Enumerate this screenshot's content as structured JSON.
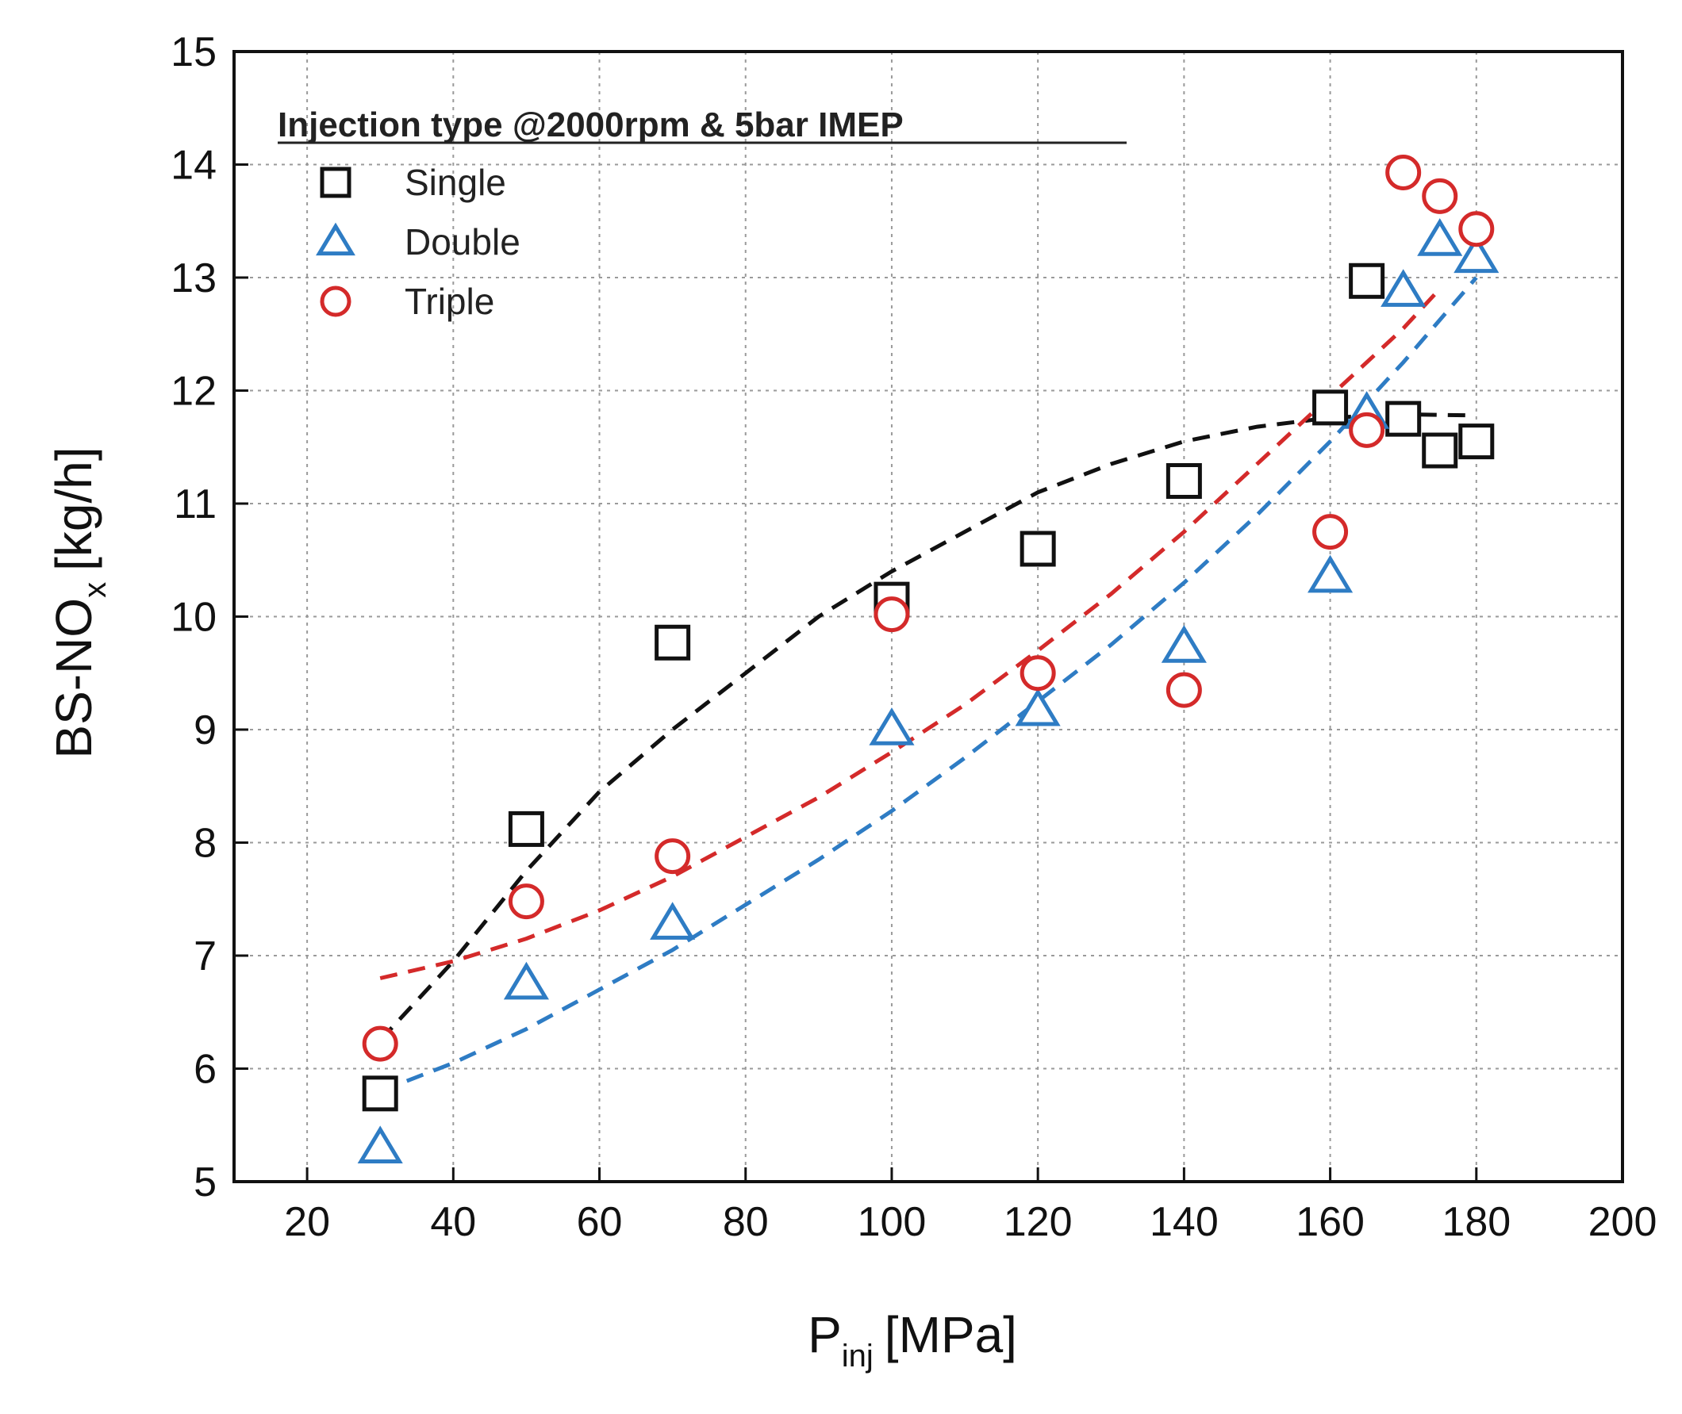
{
  "chart_data": {
    "type": "scatter",
    "title": "",
    "xlabel": "P",
    "xlabel_sub": "inj",
    "xlabel_unit": "[MPa]",
    "ylabel": "BS-NO",
    "ylabel_sub": "x",
    "ylabel_unit": "[kg/h]",
    "xlim": [
      10,
      200
    ],
    "ylim": [
      5,
      15
    ],
    "x_ticks": [
      "20",
      "40",
      "60",
      "80",
      "100",
      "120",
      "140",
      "160",
      "180",
      "200"
    ],
    "y_ticks": [
      "5",
      "6",
      "7",
      "8",
      "9",
      "10",
      "11",
      "12",
      "13",
      "14",
      "15"
    ],
    "grid": true,
    "legend": {
      "title": "Injection type @2000rpm & 5bar IMEP",
      "position": "top-left"
    },
    "series": [
      {
        "name": "Single",
        "marker": "square",
        "color": "#111111",
        "points": [
          {
            "x": 30,
            "y": 5.78
          },
          {
            "x": 50,
            "y": 8.12
          },
          {
            "x": 70,
            "y": 9.77
          },
          {
            "x": 100,
            "y": 10.15
          },
          {
            "x": 120,
            "y": 10.6
          },
          {
            "x": 140,
            "y": 11.2
          },
          {
            "x": 160,
            "y": 11.85
          },
          {
            "x": 165,
            "y": 12.97
          },
          {
            "x": 170,
            "y": 11.75
          },
          {
            "x": 175,
            "y": 11.47
          },
          {
            "x": 180,
            "y": 11.55
          }
        ],
        "trend": [
          {
            "x": 30,
            "y": 6.25
          },
          {
            "x": 40,
            "y": 6.95
          },
          {
            "x": 50,
            "y": 7.75
          },
          {
            "x": 60,
            "y": 8.45
          },
          {
            "x": 70,
            "y": 9.0
          },
          {
            "x": 80,
            "y": 9.5
          },
          {
            "x": 90,
            "y": 10.0
          },
          {
            "x": 100,
            "y": 10.4
          },
          {
            "x": 110,
            "y": 10.75
          },
          {
            "x": 120,
            "y": 11.1
          },
          {
            "x": 130,
            "y": 11.35
          },
          {
            "x": 140,
            "y": 11.55
          },
          {
            "x": 150,
            "y": 11.68
          },
          {
            "x": 160,
            "y": 11.76
          },
          {
            "x": 170,
            "y": 11.79
          },
          {
            "x": 180,
            "y": 11.78
          }
        ]
      },
      {
        "name": "Double",
        "marker": "triangle",
        "color": "#2e7cc4",
        "points": [
          {
            "x": 30,
            "y": 5.3
          },
          {
            "x": 50,
            "y": 6.75
          },
          {
            "x": 70,
            "y": 7.28
          },
          {
            "x": 100,
            "y": 9.0
          },
          {
            "x": 120,
            "y": 9.17
          },
          {
            "x": 140,
            "y": 9.73
          },
          {
            "x": 160,
            "y": 10.35
          },
          {
            "x": 165,
            "y": 11.8
          },
          {
            "x": 170,
            "y": 12.88
          },
          {
            "x": 175,
            "y": 13.33
          },
          {
            "x": 180,
            "y": 13.18
          }
        ],
        "trend": [
          {
            "x": 30,
            "y": 5.8
          },
          {
            "x": 40,
            "y": 6.05
          },
          {
            "x": 50,
            "y": 6.35
          },
          {
            "x": 60,
            "y": 6.7
          },
          {
            "x": 70,
            "y": 7.05
          },
          {
            "x": 80,
            "y": 7.45
          },
          {
            "x": 90,
            "y": 7.85
          },
          {
            "x": 100,
            "y": 8.28
          },
          {
            "x": 110,
            "y": 8.75
          },
          {
            "x": 120,
            "y": 9.25
          },
          {
            "x": 130,
            "y": 9.75
          },
          {
            "x": 140,
            "y": 10.3
          },
          {
            "x": 150,
            "y": 10.9
          },
          {
            "x": 160,
            "y": 11.55
          },
          {
            "x": 170,
            "y": 12.25
          },
          {
            "x": 180,
            "y": 13.0
          }
        ]
      },
      {
        "name": "Triple",
        "marker": "circle",
        "color": "#d42a2a",
        "points": [
          {
            "x": 30,
            "y": 6.22
          },
          {
            "x": 50,
            "y": 7.48
          },
          {
            "x": 70,
            "y": 7.88
          },
          {
            "x": 100,
            "y": 10.02
          },
          {
            "x": 120,
            "y": 9.5
          },
          {
            "x": 140,
            "y": 9.35
          },
          {
            "x": 160,
            "y": 10.75
          },
          {
            "x": 165,
            "y": 11.65
          },
          {
            "x": 170,
            "y": 13.93
          },
          {
            "x": 175,
            "y": 13.72
          },
          {
            "x": 180,
            "y": 13.43
          }
        ],
        "trend": [
          {
            "x": 30,
            "y": 6.8
          },
          {
            "x": 40,
            "y": 6.95
          },
          {
            "x": 50,
            "y": 7.15
          },
          {
            "x": 60,
            "y": 7.4
          },
          {
            "x": 70,
            "y": 7.7
          },
          {
            "x": 80,
            "y": 8.05
          },
          {
            "x": 90,
            "y": 8.4
          },
          {
            "x": 100,
            "y": 8.8
          },
          {
            "x": 110,
            "y": 9.22
          },
          {
            "x": 120,
            "y": 9.7
          },
          {
            "x": 130,
            "y": 10.2
          },
          {
            "x": 140,
            "y": 10.75
          },
          {
            "x": 150,
            "y": 11.35
          },
          {
            "x": 160,
            "y": 11.95
          },
          {
            "x": 170,
            "y": 12.55
          },
          {
            "x": 175,
            "y": 12.9
          }
        ]
      }
    ]
  }
}
